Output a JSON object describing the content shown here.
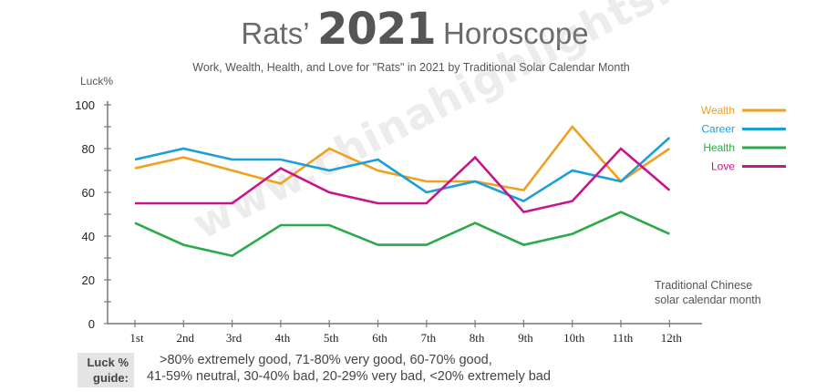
{
  "title": {
    "part1": "Rats’",
    "part2": "2021",
    "part3": "Horoscope"
  },
  "subtitle": "Work, Wealth, Health, and Love for \"Rats\" in 2021 by Traditional Solar Calendar Month",
  "watermark": "www.chinahighlights.com",
  "guide": {
    "label_line1": "Luck %",
    "label_line2": "guide:",
    "line1": ">80% extremely good, 71-80% very good, 60-70% good,",
    "line2": "41-59% neutral, 30-40% bad, 20-29% very bad, <20% extremely bad"
  },
  "chart_data": {
    "type": "line",
    "ylabel": "Luck%",
    "xlabel_lines": [
      "Traditional Chinese",
      "solar calendar month"
    ],
    "categories": [
      "1st",
      "2nd",
      "3rd",
      "4th",
      "5th",
      "6th",
      "7th",
      "8th",
      "9th",
      "10th",
      "11th",
      "12th"
    ],
    "ylim": [
      0,
      100
    ],
    "yticks": [
      0,
      20,
      40,
      60,
      80,
      100
    ],
    "grid": false,
    "legend_position": "top-right",
    "series": [
      {
        "name": "Wealth",
        "color": "#f0a020",
        "values": [
          71,
          76,
          70,
          64,
          80,
          70,
          65,
          65,
          61,
          90,
          65,
          80
        ]
      },
      {
        "name": "Career",
        "color": "#1aa0d8",
        "values": [
          75,
          80,
          75,
          75,
          70,
          75,
          60,
          65,
          56,
          70,
          65,
          85
        ]
      },
      {
        "name": "Health",
        "color": "#2aaa48",
        "values": [
          46,
          36,
          31,
          45,
          45,
          36,
          36,
          46,
          36,
          41,
          51,
          41
        ]
      },
      {
        "name": "Love",
        "color": "#c8148a",
        "values": [
          55,
          55,
          55,
          71,
          60,
          55,
          55,
          76,
          51,
          56,
          80,
          61
        ]
      }
    ]
  }
}
